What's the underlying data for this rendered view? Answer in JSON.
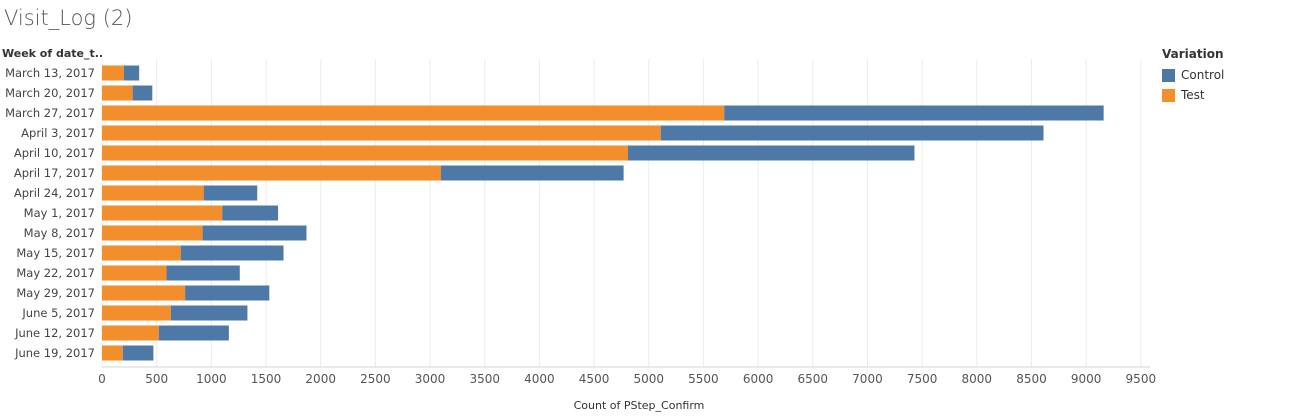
{
  "title": "Visit_Log (2)",
  "rows_header": "Week of date_t..",
  "legend": {
    "title": "Variation",
    "items": [
      {
        "label": "Control",
        "color": "#4e79a7"
      },
      {
        "label": "Test",
        "color": "#f28e2b"
      }
    ]
  },
  "chart_data": {
    "type": "bar",
    "orientation": "horizontal",
    "stacked": true,
    "categories": [
      "March 13, 2017",
      "March 20, 2017",
      "March 27, 2017",
      "April 3, 2017",
      "April 10, 2017",
      "April 17, 2017",
      "April 24, 2017",
      "May 1, 2017",
      "May 8, 2017",
      "May 15, 2017",
      "May 22, 2017",
      "May 29, 2017",
      "June 5, 2017",
      "June 12, 2017",
      "June 19, 2017"
    ],
    "series": [
      {
        "name": "Test",
        "color": "#f28e2b",
        "values": [
          200,
          280,
          5690,
          5110,
          4810,
          3100,
          930,
          1100,
          920,
          720,
          590,
          760,
          630,
          520,
          190
        ]
      },
      {
        "name": "Control",
        "color": "#4e79a7",
        "values": [
          140,
          180,
          3470,
          3500,
          2620,
          1670,
          490,
          510,
          950,
          940,
          670,
          770,
          700,
          640,
          280
        ]
      }
    ],
    "xlabel": "Count of PStep_Confirm",
    "ylabel": "Week of date_t..",
    "xlim": [
      0,
      9600
    ],
    "xticks": [
      0,
      500,
      1000,
      1500,
      2000,
      2500,
      3000,
      3500,
      4000,
      4500,
      5000,
      5500,
      6000,
      6500,
      7000,
      7500,
      8000,
      8500,
      9000,
      9500
    ],
    "grid": true,
    "legend_position": "right"
  }
}
